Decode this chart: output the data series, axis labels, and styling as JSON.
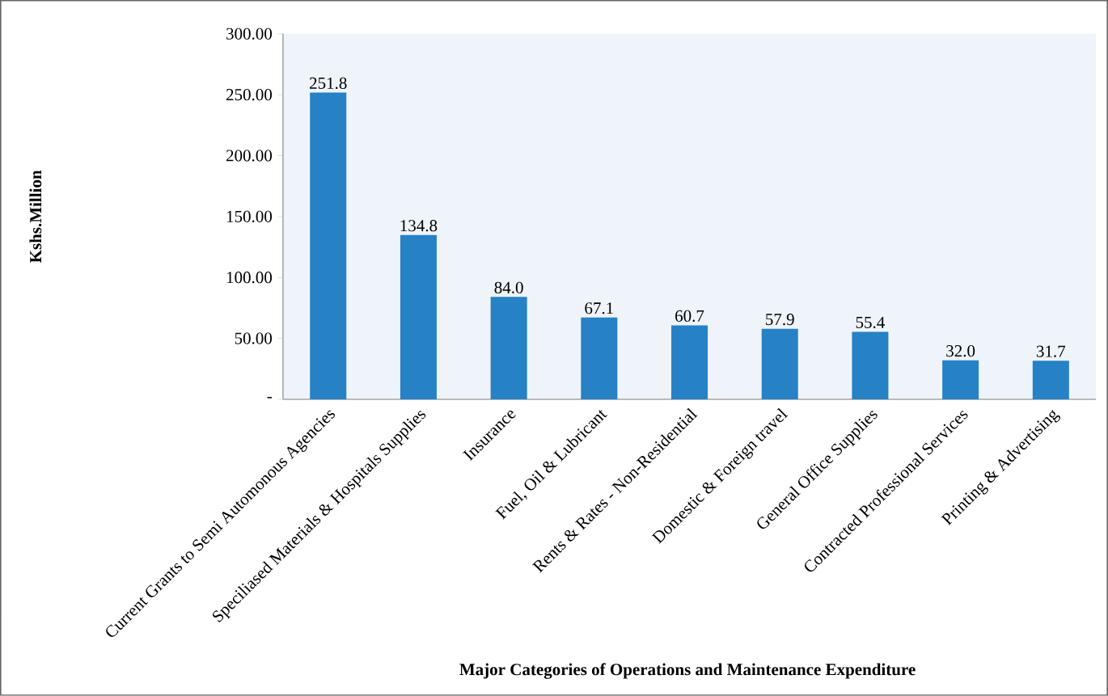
{
  "chart_data": {
    "type": "bar",
    "xlabel": "Major Categories of Operations and Maintenance Expenditure",
    "ylabel": "Kshs.Million",
    "categories": [
      "Current Grants to Semi Automonous Agencies",
      "Speciliased Materials & Hospitals Supplies",
      "Insurance",
      "Fuel, Oil & Lubricant",
      "Rents & Rates - Non-Residential",
      "Domestic & Foreign travel",
      "General Office Supplies",
      "Contracted Professional Services",
      "Printing & Advertising"
    ],
    "values": [
      251.8,
      134.8,
      84.0,
      67.1,
      60.7,
      57.9,
      55.4,
      32.0,
      31.7
    ],
    "value_labels": [
      "251.8",
      "134.8",
      "84.0",
      "67.1",
      "60.7",
      "57.9",
      "55.4",
      "32.0",
      "31.7"
    ],
    "color": "#2681c5",
    "ylim": [
      0,
      300
    ],
    "yticks": [
      {
        "value": 0,
        "label": "-"
      },
      {
        "value": 50,
        "label": "50.00"
      },
      {
        "value": 100,
        "label": "100.00"
      },
      {
        "value": 150,
        "label": "150.00"
      },
      {
        "value": 200,
        "label": "200.00"
      },
      {
        "value": 250,
        "label": "250.00"
      },
      {
        "value": 300,
        "label": "300.00"
      }
    ],
    "grid": false
  }
}
